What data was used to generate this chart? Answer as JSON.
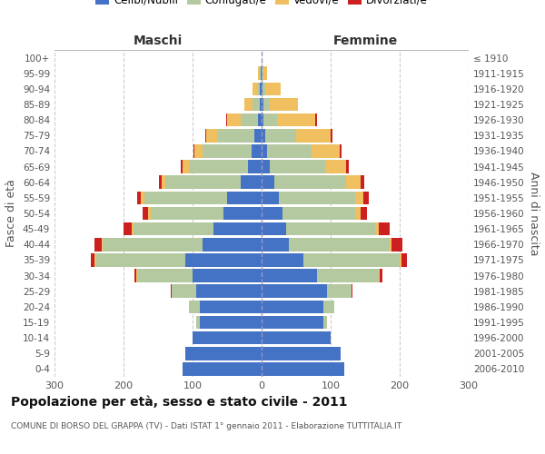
{
  "age_groups_bottom_to_top": [
    "0-4",
    "5-9",
    "10-14",
    "15-19",
    "20-24",
    "25-29",
    "30-34",
    "35-39",
    "40-44",
    "45-49",
    "50-54",
    "55-59",
    "60-64",
    "65-69",
    "70-74",
    "75-79",
    "80-84",
    "85-89",
    "90-94",
    "95-99",
    "100+"
  ],
  "birth_years_bottom_to_top": [
    "2006-2010",
    "2001-2005",
    "1996-2000",
    "1991-1995",
    "1986-1990",
    "1981-1985",
    "1976-1980",
    "1971-1975",
    "1966-1970",
    "1961-1965",
    "1956-1960",
    "1951-1955",
    "1946-1950",
    "1941-1945",
    "1936-1940",
    "1931-1935",
    "1926-1930",
    "1921-1925",
    "1916-1920",
    "1911-1915",
    "≤ 1910"
  ],
  "colors": {
    "celibe": "#4472C4",
    "coniugato": "#B5C9A0",
    "vedovo": "#F0C060",
    "divorziato": "#CC2020"
  },
  "maschi_celibe": [
    115,
    110,
    100,
    90,
    90,
    95,
    100,
    110,
    85,
    70,
    55,
    50,
    30,
    20,
    15,
    10,
    5,
    3,
    2,
    1,
    0
  ],
  "maschi_coniugato": [
    0,
    0,
    0,
    5,
    15,
    35,
    80,
    130,
    145,
    115,
    105,
    120,
    110,
    85,
    70,
    55,
    25,
    10,
    5,
    2,
    0
  ],
  "maschi_vedovo": [
    0,
    0,
    0,
    0,
    0,
    0,
    1,
    2,
    2,
    3,
    4,
    5,
    5,
    10,
    12,
    15,
    20,
    12,
    6,
    2,
    0
  ],
  "maschi_divorziato": [
    0,
    0,
    0,
    0,
    0,
    2,
    3,
    5,
    10,
    12,
    8,
    5,
    4,
    2,
    2,
    2,
    1,
    0,
    0,
    0,
    0
  ],
  "femmine_nubile": [
    120,
    115,
    100,
    90,
    90,
    95,
    80,
    60,
    40,
    35,
    30,
    25,
    18,
    12,
    8,
    5,
    3,
    2,
    1,
    0,
    0
  ],
  "femmine_coniugata": [
    0,
    0,
    0,
    5,
    15,
    35,
    90,
    140,
    145,
    130,
    105,
    110,
    105,
    80,
    65,
    45,
    20,
    10,
    4,
    2,
    0
  ],
  "femmine_vedova": [
    0,
    0,
    0,
    0,
    0,
    0,
    1,
    2,
    3,
    5,
    8,
    12,
    20,
    30,
    40,
    50,
    55,
    40,
    22,
    6,
    0
  ],
  "femmine_divorziata": [
    0,
    0,
    0,
    0,
    0,
    2,
    4,
    8,
    16,
    16,
    10,
    8,
    6,
    4,
    3,
    3,
    2,
    0,
    0,
    0,
    0
  ],
  "title": "Popolazione per età, sesso e stato civile - 2011",
  "subtitle": "COMUNE DI BORSO DEL GRAPPA (TV) - Dati ISTAT 1° gennaio 2011 - Elaborazione TUTTITALIA.IT",
  "maschi_label": "Maschi",
  "femmine_label": "Femmine",
  "ylabel_left": "Fasce di età",
  "ylabel_right": "Anni di nascita",
  "xlim": 300
}
